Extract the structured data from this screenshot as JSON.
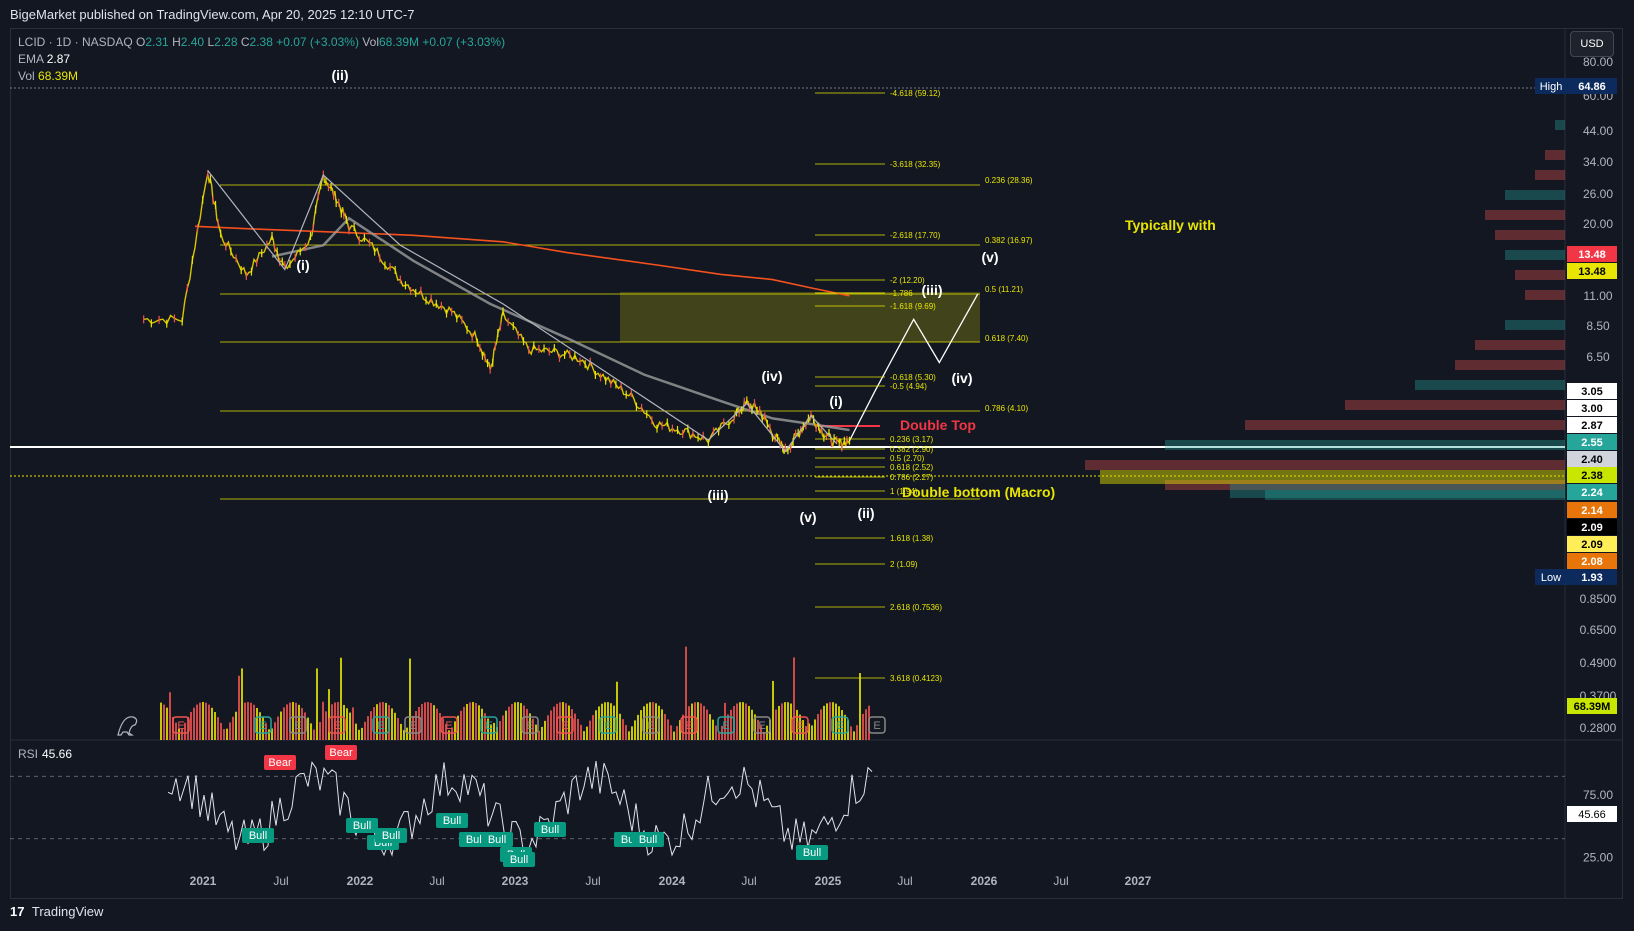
{
  "publisher": "BigeMarket published on TradingView.com, Apr 20, 2025 12:10 UTC-7",
  "legend": {
    "symbol": "LCID · 1D · NASDAQ",
    "o_label": "O",
    "o": "2.31",
    "h_label": "H",
    "h": "2.40",
    "l_label": "L",
    "l": "2.28",
    "c_label": "C",
    "c": "2.38",
    "change": "+0.07 (+3.03%)",
    "vol_label_inline": "Vol",
    "vol_inline": "68.39M",
    "change2": "+0.07 (+3.03%)",
    "ema_label": "EMA",
    "ema": "2.87",
    "vol_label": "Vol",
    "vol": "68.39M"
  },
  "currency_button": "USD",
  "footer_brand": "TradingView",
  "rsi_label": "RSI",
  "rsi_value": "45.66",
  "colors": {
    "bg": "#131722",
    "grid": "#1e222d",
    "up": "#26a69a",
    "down": "#ef5350",
    "fib": "#e8e600",
    "ema200": "#f4511e",
    "sma": "#9e9e9e",
    "white": "#ffffff",
    "accent_red": "#f23645",
    "accent_yellow": "#e8e600"
  },
  "chart_data": {
    "type": "line",
    "title": "",
    "scale": "log",
    "x_ticks": [
      "2021",
      "Jul",
      "2022",
      "Jul",
      "2023",
      "Jul",
      "2024",
      "Jul",
      "2025",
      "Jul",
      "2026",
      "Jul",
      "2027"
    ],
    "y_ticks": [
      "80.00",
      "60.00",
      "44.00",
      "34.00",
      "26.00",
      "20.00",
      "11.00",
      "8.50",
      "6.50",
      "0.8500",
      "0.6500",
      "0.4900",
      "0.3700",
      "0.2800"
    ],
    "price_labels": [
      {
        "text": "High",
        "value": "64.86"
      },
      {
        "text": "",
        "value": "13.48"
      },
      {
        "text": "",
        "value": "13.48"
      },
      {
        "text": "",
        "value": "3.05"
      },
      {
        "text": "",
        "value": "3.00"
      },
      {
        "text": "",
        "value": "2.87"
      },
      {
        "text": "",
        "value": "2.55"
      },
      {
        "text": "",
        "value": "2.40"
      },
      {
        "text": "",
        "value": "2.38"
      },
      {
        "text": "",
        "value": "2.24"
      },
      {
        "text": "",
        "value": "2.14"
      },
      {
        "text": "",
        "value": "2.09"
      },
      {
        "text": "",
        "value": "2.09"
      },
      {
        "text": "",
        "value": "2.08"
      },
      {
        "text": "Low",
        "value": "1.93"
      },
      {
        "text": "",
        "value": "68.39M"
      }
    ],
    "series": [
      {
        "values": [
          [
            "2020-09",
            10.0
          ],
          [
            "2020-12",
            10.0
          ],
          [
            "2021-02",
            58
          ],
          [
            "2021-03",
            27
          ],
          [
            "2021-05",
            17
          ],
          [
            "2021-07",
            26
          ],
          [
            "2021-08",
            18
          ],
          [
            "2021-10",
            26
          ],
          [
            "2021-11",
            55
          ],
          [
            "2021-12",
            42
          ],
          [
            "2022-01",
            30
          ],
          [
            "2022-03",
            23
          ],
          [
            "2022-05",
            16
          ],
          [
            "2022-07",
            13
          ],
          [
            "2022-09",
            11
          ],
          [
            "2022-11",
            8
          ],
          [
            "2022-12",
            5.5
          ],
          [
            "2023-01",
            10.5
          ],
          [
            "2023-03",
            7
          ],
          [
            "2023-05",
            6.8
          ],
          [
            "2023-07",
            6.3
          ],
          [
            "2023-09",
            5.0
          ],
          [
            "2023-11",
            4.0
          ],
          [
            "2024-01",
            2.9
          ],
          [
            "2024-03",
            2.7
          ],
          [
            "2024-05",
            2.4
          ],
          [
            "2024-07",
            3.2
          ],
          [
            "2024-08",
            3.7
          ],
          [
            "2024-09",
            3.4
          ],
          [
            "2024-10",
            2.6
          ],
          [
            "2024-11",
            2.1
          ],
          [
            "2024-12",
            2.6
          ],
          [
            "2025-01",
            3.2
          ],
          [
            "2025-02",
            2.6
          ],
          [
            "2025-03",
            2.3
          ],
          [
            "2025-04",
            2.38
          ]
        ]
      }
    ],
    "projection": [
      [
        "2025-04",
        2.38
      ],
      [
        "2025-06",
        4.3
      ],
      [
        "2025-09",
        10.0
      ],
      [
        "2025-11",
        6.0
      ],
      [
        "2026-02",
        13.5
      ]
    ],
    "fib_levels": [
      {
        "ratio": "-4.618",
        "value": "59.12"
      },
      {
        "ratio": "-3.618",
        "value": "32.35"
      },
      {
        "ratio": "0.236",
        "value": "28.36"
      },
      {
        "ratio": "-2.618",
        "value": "17.70"
      },
      {
        "ratio": "0.382",
        "value": "16.97"
      },
      {
        "ratio": "-2",
        "value": "12.20"
      },
      {
        "ratio": "-1.786",
        "value": ""
      },
      {
        "ratio": "0.5",
        "value": "11.21"
      },
      {
        "ratio": "-1.618",
        "value": "9.69"
      },
      {
        "ratio": "0.618",
        "value": "7.40"
      },
      {
        "ratio": "-0.618",
        "value": "5.30"
      },
      {
        "ratio": "-0.5",
        "value": "4.94"
      },
      {
        "ratio": "0.786",
        "value": "4.10"
      },
      {
        "ratio": "0.236",
        "value": "3.17"
      },
      {
        "ratio": "0.382",
        "value": "2.90"
      },
      {
        "ratio": "0.5",
        "value": "2.70"
      },
      {
        "ratio": "0.618",
        "value": "2.52"
      },
      {
        "ratio": "0.786",
        "value": "2.27"
      },
      {
        "ratio": "1",
        "value": "1.94"
      },
      {
        "ratio": "1.618",
        "value": "1.38"
      },
      {
        "ratio": "2",
        "value": "1.09"
      },
      {
        "ratio": "2.618",
        "value": "0.7536"
      },
      {
        "ratio": "3.618",
        "value": "0.4123"
      }
    ],
    "wave_labels": [
      "(ii)",
      "(i)",
      "(iv)",
      "(iii)",
      "(i)",
      "(v)",
      "(ii)",
      "(v)",
      "(iii)",
      "(iv)"
    ],
    "annotations": [
      "Typically with",
      "Double Top",
      "Double bottom (Macro)"
    ],
    "rsi": {
      "ticks": [
        "75.00",
        "25.00"
      ],
      "current": "45.66",
      "labels": [
        "Bear",
        "Bear",
        "Bull",
        "Bull",
        "Bull",
        "Bull",
        "Bull",
        "Bull",
        "Bull",
        "Bull",
        "Bull",
        "Bull",
        "Bull",
        "Bull",
        "Bull"
      ]
    },
    "volume_current": "68.39M",
    "event_markers": [
      "E",
      "E",
      "E",
      "E",
      "E",
      "E",
      "E",
      "E",
      "E",
      "E",
      "E",
      "E",
      "E",
      "E",
      "E",
      "E",
      "E",
      "E",
      "E",
      "E",
      "E",
      "E",
      "E",
      "E",
      "E"
    ],
    "grid": false,
    "legend": "top-left"
  }
}
